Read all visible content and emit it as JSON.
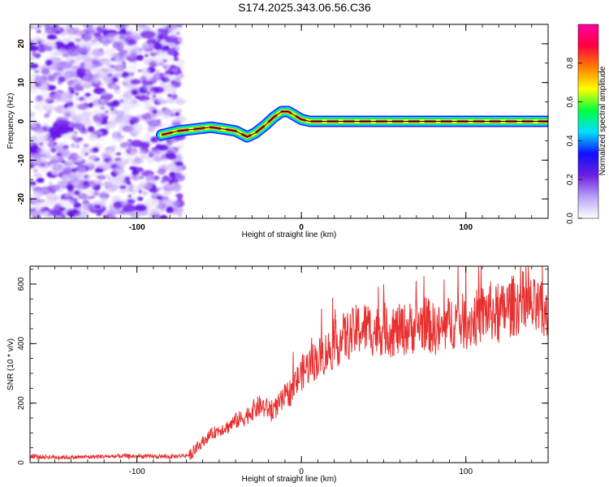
{
  "title": "S174.2025.343.06.56.C36",
  "colors": {
    "snr_line": "#e83030",
    "ridge": "#e0304a",
    "noise": "#7a2cf0",
    "axis": "#000000"
  },
  "colormap_stops": [
    "#ffffff",
    "#b8a0f8",
    "#6a1ee0",
    "#1010ff",
    "#00e0ff",
    "#00ff40",
    "#ffff00",
    "#ff8000",
    "#ff0040",
    "#ff00a0"
  ],
  "chart_data": [
    {
      "type": "heatmap",
      "title": "S174.2025.343.06.56.C36",
      "xlabel": "Height of straight line (km)",
      "ylabel": "Frequency (Hz)",
      "xlim": [
        -165,
        150
      ],
      "ylim": [
        -25,
        25
      ],
      "x_ticks": [
        -100,
        0,
        100
      ],
      "x_tick_labels": [
        "-100",
        "0",
        "100"
      ],
      "y_ticks": [
        -20,
        -10,
        0,
        10,
        20
      ],
      "y_tick_labels": [
        "-20",
        "-10",
        "0",
        "10",
        "20"
      ],
      "noise_region_x": [
        -165,
        -73
      ],
      "ridge": {
        "x": [
          -85,
          -75,
          -65,
          -55,
          -47,
          -40,
          -33,
          -28,
          -22,
          -17,
          -12,
          -8,
          -4,
          0,
          5,
          150
        ],
        "y": [
          -3.5,
          -2.5,
          -2.0,
          -1.5,
          -2.0,
          -2.5,
          -4.0,
          -3.0,
          -1.0,
          1.0,
          2.5,
          2.5,
          1.5,
          0.5,
          0.0,
          0.0
        ]
      },
      "colorbar": {
        "label": "Normalized spectral amplitude",
        "range": [
          0,
          1
        ],
        "ticks": [
          0.0,
          0.2,
          0.4,
          0.6,
          0.8
        ],
        "tick_labels": [
          "0.0",
          "0.2",
          "0.4",
          "0.6",
          "0.8"
        ]
      }
    },
    {
      "type": "line",
      "xlabel": "Height of straight line (km)",
      "ylabel": "SNR (10 * v/v)",
      "xlim": [
        -165,
        150
      ],
      "ylim": [
        0,
        660
      ],
      "x_ticks": [
        -100,
        0,
        100
      ],
      "x_tick_labels": [
        "-100",
        "0",
        "100"
      ],
      "y_ticks": [
        0,
        200,
        400,
        600
      ],
      "y_tick_labels": [
        "0",
        "200",
        "400",
        "600"
      ],
      "series": [
        {
          "name": "SNR",
          "x": [
            -165,
            -140,
            -110,
            -80,
            -68,
            -65,
            -60,
            -55,
            -50,
            -45,
            -40,
            -35,
            -30,
            -25,
            -20,
            -15,
            -10,
            -5,
            0,
            5,
            10,
            15,
            20,
            25,
            30,
            35,
            40,
            45,
            50,
            55,
            60,
            65,
            70,
            75,
            80,
            85,
            90,
            95,
            100,
            105,
            110,
            115,
            120,
            125,
            130,
            135,
            140,
            145,
            150
          ],
          "values": [
            20,
            18,
            22,
            20,
            25,
            40,
            70,
            95,
            110,
            120,
            140,
            150,
            175,
            190,
            180,
            185,
            220,
            250,
            300,
            330,
            350,
            370,
            390,
            420,
            430,
            450,
            455,
            440,
            450,
            440,
            445,
            450,
            460,
            470,
            450,
            440,
            470,
            480,
            470,
            480,
            500,
            510,
            490,
            520,
            530,
            540,
            520,
            510,
            480
          ]
        }
      ]
    }
  ]
}
